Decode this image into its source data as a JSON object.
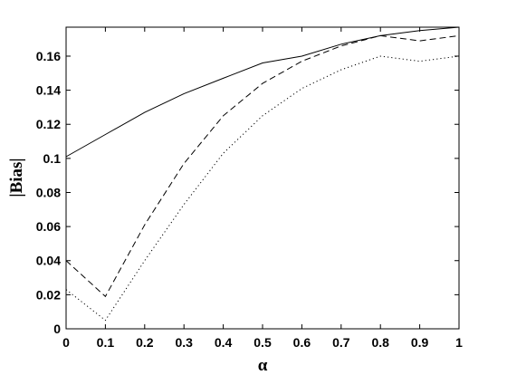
{
  "chart_data": {
    "type": "line",
    "xlabel": "α",
    "ylabel": "|Bias|",
    "xlim": [
      0,
      1
    ],
    "ylim": [
      0,
      0.177
    ],
    "xticks": [
      "0",
      "0.1",
      "0.2",
      "0.3",
      "0.4",
      "0.5",
      "0.6",
      "0.7",
      "0.8",
      "0.9",
      "1"
    ],
    "yticks": [
      "0",
      "0.02",
      "0.04",
      "0.06",
      "0.08",
      "0.1",
      "0.12",
      "0.14",
      "0.16"
    ],
    "grid": false,
    "x": [
      0,
      0.1,
      0.2,
      0.3,
      0.4,
      0.5,
      0.6,
      0.7,
      0.8,
      0.9,
      1.0
    ],
    "series": [
      {
        "style": "solid",
        "color": "#000000",
        "values": [
          0.101,
          0.114,
          0.127,
          0.138,
          0.147,
          0.156,
          0.16,
          0.167,
          0.172,
          0.175,
          0.177
        ]
      },
      {
        "style": "dashed",
        "color": "#000000",
        "values": [
          0.04,
          0.019,
          0.061,
          0.097,
          0.125,
          0.144,
          0.157,
          0.166,
          0.172,
          0.169,
          0.172
        ]
      },
      {
        "style": "dotted",
        "color": "#000000",
        "values": [
          0.023,
          0.005,
          0.04,
          0.073,
          0.103,
          0.125,
          0.141,
          0.152,
          0.16,
          0.157,
          0.16
        ]
      }
    ]
  }
}
